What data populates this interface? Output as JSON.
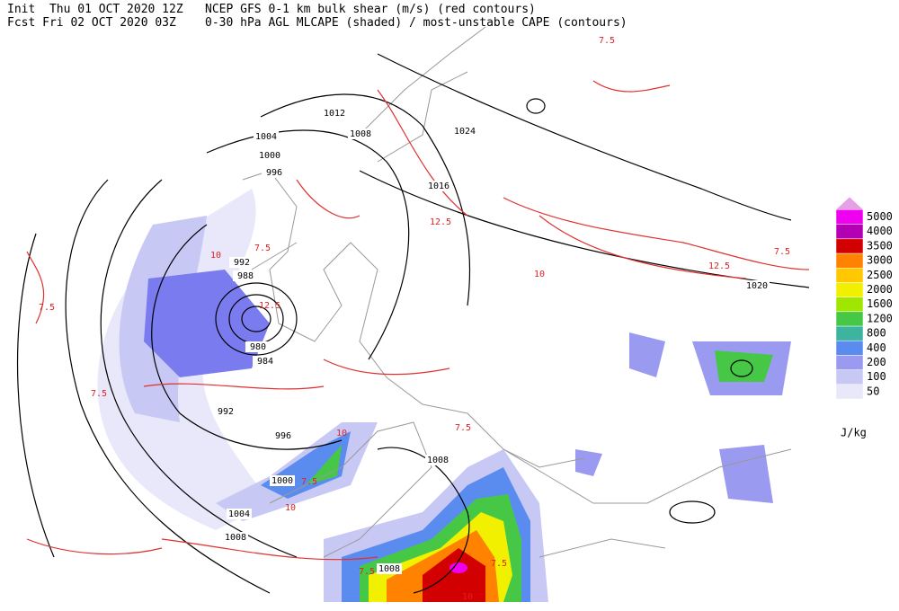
{
  "header": {
    "init": "Init  Thu 01 OCT 2020 12Z",
    "forecast": "Fcst Fri 02 OCT 2020 03Z",
    "line1": "NCEP GFS 0-1 km bulk shear (m/s) (red contours)",
    "line2": "0-30 hPa AGL MLCAPE (shaded) / most-unstable CAPE (contours)"
  },
  "legend": {
    "unit": "J/kg",
    "levels": [
      50,
      100,
      200,
      400,
      800,
      1200,
      1600,
      2000,
      2500,
      3000,
      3500,
      4000,
      5000
    ],
    "colors": [
      "#e8e8fa",
      "#c8c8f4",
      "#9a9af0",
      "#5a8cf0",
      "#3cb4a0",
      "#46c846",
      "#a0e600",
      "#f0f000",
      "#ffc800",
      "#ff8200",
      "#d20000",
      "#b400b4",
      "#f000f0"
    ],
    "top_color": "#e6a0e6"
  },
  "isobar_labels": [
    "1012",
    "1004",
    "1008",
    "1000",
    "996",
    "1024",
    "1016",
    "992",
    "988",
    "980",
    "984",
    "992",
    "996",
    "1000",
    "1004",
    "1008",
    "1008",
    "1008",
    "1020"
  ],
  "shear_labels": [
    "7.5",
    "7.5",
    "7.5",
    "10",
    "12.5",
    "7.5",
    "10",
    "12.5",
    "7.5",
    "10",
    "7.5",
    "7.5",
    "10",
    "7.5",
    "12.5",
    "7.5",
    "10"
  ]
}
